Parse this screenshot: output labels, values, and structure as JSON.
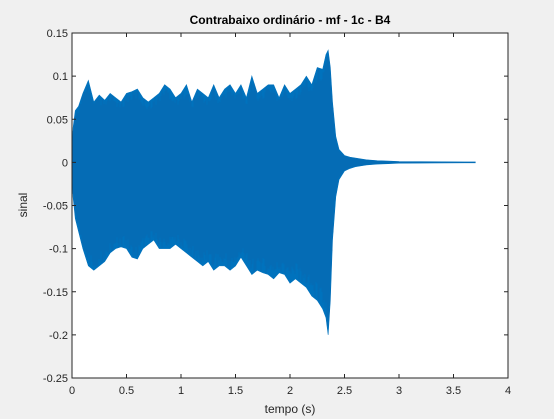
{
  "chart_data": {
    "type": "area",
    "title": "Contrabaixo ordinário - mf - 1c - B4",
    "xlabel": "tempo (s)",
    "ylabel": "sinal",
    "xlim": [
      0,
      4
    ],
    "ylim": [
      -0.25,
      0.15
    ],
    "x_ticks": [
      "0",
      "0.5",
      "1",
      "1.5",
      "2",
      "2.5",
      "3",
      "3.5",
      "4"
    ],
    "y_ticks": [
      "0.15",
      "0.1",
      "0.05",
      "0",
      "-0.05",
      "-0.1",
      "-0.15",
      "-0.2",
      "-0.25"
    ],
    "grid": false,
    "legend": "none",
    "series_color": "#0072bd",
    "series": [
      {
        "x": [
          0.0,
          0.01,
          0.03,
          0.06,
          0.1,
          0.15,
          0.2,
          0.25,
          0.3,
          0.35,
          0.4,
          0.45,
          0.5,
          0.55,
          0.6,
          0.65,
          0.7,
          0.75,
          0.8,
          0.85,
          0.9,
          0.95,
          1.0,
          1.05,
          1.1,
          1.15,
          1.2,
          1.25,
          1.3,
          1.35,
          1.4,
          1.45,
          1.5,
          1.55,
          1.6,
          1.65,
          1.7,
          1.75,
          1.8,
          1.85,
          1.9,
          1.95,
          2.0,
          2.05,
          2.1,
          2.15,
          2.2,
          2.25,
          2.3,
          2.33,
          2.35,
          2.37,
          2.39,
          2.42,
          2.45,
          2.5,
          2.55,
          2.6,
          2.7,
          2.8,
          2.9,
          3.0,
          3.2,
          3.4,
          3.6,
          3.7
        ],
        "upper": [
          0.0,
          0.04,
          0.06,
          0.065,
          0.08,
          0.095,
          0.07,
          0.078,
          0.072,
          0.08,
          0.075,
          0.07,
          0.08,
          0.082,
          0.085,
          0.075,
          0.07,
          0.075,
          0.08,
          0.09,
          0.085,
          0.075,
          0.08,
          0.09,
          0.07,
          0.085,
          0.08,
          0.075,
          0.09,
          0.075,
          0.085,
          0.09,
          0.08,
          0.09,
          0.075,
          0.1,
          0.08,
          0.085,
          0.09,
          0.09,
          0.075,
          0.09,
          0.08,
          0.085,
          0.09,
          0.1,
          0.09,
          0.11,
          0.108,
          0.125,
          0.13,
          0.11,
          0.07,
          0.03,
          0.015,
          0.008,
          0.006,
          0.005,
          0.003,
          0.002,
          0.0015,
          0.001,
          0.0008,
          0.0006,
          0.0005,
          0.0005
        ],
        "lower": [
          0.0,
          -0.04,
          -0.065,
          -0.08,
          -0.1,
          -0.12,
          -0.125,
          -0.12,
          -0.115,
          -0.105,
          -0.1,
          -0.098,
          -0.1,
          -0.11,
          -0.112,
          -0.1,
          -0.095,
          -0.09,
          -0.1,
          -0.1,
          -0.1,
          -0.095,
          -0.1,
          -0.105,
          -0.11,
          -0.115,
          -0.12,
          -0.115,
          -0.125,
          -0.12,
          -0.12,
          -0.125,
          -0.12,
          -0.11,
          -0.12,
          -0.13,
          -0.125,
          -0.128,
          -0.13,
          -0.135,
          -0.128,
          -0.13,
          -0.14,
          -0.135,
          -0.14,
          -0.145,
          -0.155,
          -0.16,
          -0.17,
          -0.18,
          -0.2,
          -0.16,
          -0.09,
          -0.04,
          -0.02,
          -0.01,
          -0.007,
          -0.005,
          -0.003,
          -0.002,
          -0.0015,
          -0.001,
          -0.0008,
          -0.0006,
          -0.0005,
          -0.0005
        ]
      }
    ]
  }
}
